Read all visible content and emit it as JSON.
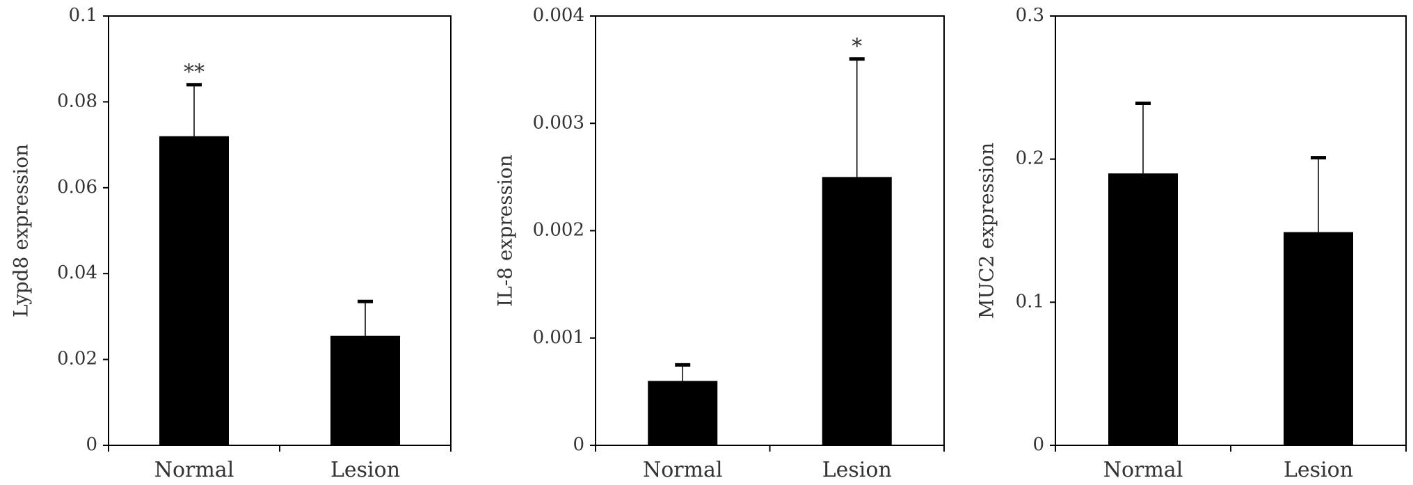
{
  "chart_data": [
    {
      "type": "bar",
      "categories": [
        "Normal",
        "Lesion"
      ],
      "values": [
        0.072,
        0.0255
      ],
      "errors": [
        0.012,
        0.008
      ],
      "annotations": [
        "**",
        ""
      ],
      "ylabel": "Lypd8 expression",
      "ylim": [
        0,
        0.1
      ],
      "yticks": [
        "0",
        "0.02",
        "0.04",
        "0.06",
        "0.08",
        "0.1"
      ],
      "ytick_values": [
        0,
        0.02,
        0.04,
        0.06,
        0.08,
        0.1
      ],
      "grid": false,
      "bar_color": "#000000"
    },
    {
      "type": "bar",
      "categories": [
        "Normal",
        "Lesion"
      ],
      "values": [
        0.0006,
        0.0025
      ],
      "errors": [
        0.00015,
        0.0011
      ],
      "annotations": [
        "",
        "*"
      ],
      "ylabel": "IL-8 expression",
      "ylim": [
        0,
        0.004
      ],
      "yticks": [
        "0",
        "0.001",
        "0.002",
        "0.003",
        "0.004"
      ],
      "ytick_values": [
        0,
        0.001,
        0.002,
        0.003,
        0.004
      ],
      "grid": false,
      "bar_color": "#000000"
    },
    {
      "type": "bar",
      "categories": [
        "Normal",
        "Lesion"
      ],
      "values": [
        0.19,
        0.149
      ],
      "errors": [
        0.049,
        0.052
      ],
      "annotations": [
        "",
        ""
      ],
      "ylabel": "MUC2 expression",
      "ylim": [
        0,
        0.3
      ],
      "yticks": [
        "0",
        "0.1",
        "0.2",
        "0.3"
      ],
      "ytick_values": [
        0,
        0.1,
        0.2,
        0.3
      ],
      "grid": false,
      "bar_color": "#000000"
    }
  ]
}
